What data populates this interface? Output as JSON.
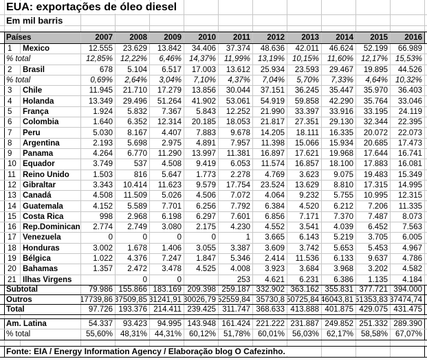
{
  "title": "EUA: exportações de óleo diesel",
  "subtitle": "Em mil barris",
  "fonte": "Fonte: EIA / Energy Information Agency / Elaboração blog O Cafezinho.",
  "colors": {
    "header_bg": "#c0c0c0",
    "gridline": "#c7c7c7",
    "border": "#000000",
    "text": "#000000",
    "background": "#ffffff"
  },
  "table": {
    "country_header": "Países",
    "years": [
      "2007",
      "2008",
      "2009",
      "2010",
      "2011",
      "2012",
      "2013",
      "2014",
      "2015",
      "2016"
    ],
    "main_rows": [
      {
        "type": "country",
        "num": "1",
        "name": "Mexico",
        "values": [
          "12.555",
          "23.629",
          "13.842",
          "34.406",
          "37.374",
          "48.636",
          "42.011",
          "46.624",
          "52.199",
          "66.989"
        ]
      },
      {
        "type": "pct",
        "label": "% total",
        "values": [
          "12,85%",
          "12,22%",
          "6,46%",
          "14,37%",
          "11,99%",
          "13,19%",
          "10,15%",
          "11,60%",
          "12,17%",
          "15,53%"
        ]
      },
      {
        "type": "country",
        "num": "2",
        "name": "Brasil",
        "values": [
          "678",
          "5.104",
          "6.517",
          "17.003",
          "13.612",
          "25.934",
          "23.593",
          "29.467",
          "19.895",
          "44.526"
        ]
      },
      {
        "type": "pct",
        "label": "% total",
        "values": [
          "0,69%",
          "2,64%",
          "3,04%",
          "7,10%",
          "4,37%",
          "7,04%",
          "5,70%",
          "7,33%",
          "4,64%",
          "10,32%"
        ]
      },
      {
        "type": "country",
        "num": "3",
        "name": "Chile",
        "values": [
          "11.945",
          "21.710",
          "17.279",
          "13.856",
          "30.044",
          "37.151",
          "36.245",
          "35.447",
          "35.970",
          "36.403"
        ]
      },
      {
        "type": "country",
        "num": "4",
        "name": "Holanda",
        "values": [
          "13.349",
          "29.496",
          "51.264",
          "41.902",
          "53.061",
          "54.919",
          "59.858",
          "42.290",
          "35.764",
          "33.046"
        ]
      },
      {
        "type": "country",
        "num": "5",
        "name": "França",
        "values": [
          "1.924",
          "5.832",
          "7.367",
          "5.843",
          "12.252",
          "21.990",
          "33.397",
          "33.916",
          "33.195",
          "24.119"
        ]
      },
      {
        "type": "country",
        "num": "6",
        "name": "Colombia",
        "values": [
          "1.640",
          "6.352",
          "12.314",
          "20.185",
          "18.053",
          "21.817",
          "27.351",
          "29.130",
          "32.344",
          "22.395"
        ]
      },
      {
        "type": "country",
        "num": "7",
        "name": "Peru",
        "values": [
          "5.030",
          "8.167",
          "4.407",
          "7.883",
          "9.678",
          "14.205",
          "18.111",
          "16.335",
          "20.072",
          "22.073"
        ]
      },
      {
        "type": "country",
        "num": "8",
        "name": "Argentina",
        "values": [
          "2.193",
          "5.698",
          "2.975",
          "4.891",
          "7.957",
          "11.398",
          "15.066",
          "15.934",
          "20.685",
          "17.473"
        ]
      },
      {
        "type": "country",
        "num": "9",
        "name": "Panama",
        "values": [
          "4.264",
          "6.770",
          "11.290",
          "13.997",
          "11.381",
          "16.897",
          "17.621",
          "19.968",
          "17.644",
          "16.741"
        ]
      },
      {
        "type": "country",
        "num": "10",
        "name": "Equador",
        "values": [
          "3.749",
          "537",
          "4.508",
          "9.419",
          "6.053",
          "11.574",
          "16.857",
          "18.100",
          "17.883",
          "16.081"
        ]
      },
      {
        "type": "country",
        "num": "11",
        "name": "Reino Unido",
        "values": [
          "1.503",
          "816",
          "5.647",
          "1.773",
          "2.278",
          "4.769",
          "3.623",
          "9.075",
          "19.483",
          "15.349"
        ]
      },
      {
        "type": "country",
        "num": "12",
        "name": "Gibraltar",
        "values": [
          "3.343",
          "10.414",
          "11.623",
          "9.579",
          "17.754",
          "23.524",
          "13.629",
          "8.810",
          "17.315",
          "14.995"
        ]
      },
      {
        "type": "country",
        "num": "13",
        "name": "Canadá",
        "values": [
          "4.508",
          "11.509",
          "5.026",
          "4.506",
          "7.072",
          "4.064",
          "9.232",
          "5.755",
          "10.995",
          "12.315"
        ]
      },
      {
        "type": "country",
        "num": "14",
        "name": "Guatemala",
        "values": [
          "4.152",
          "5.589",
          "7.701",
          "6.256",
          "7.792",
          "6.384",
          "4.520",
          "6.212",
          "7.206",
          "11.335"
        ]
      },
      {
        "type": "country",
        "num": "15",
        "name": "Costa Rica",
        "values": [
          "998",
          "2.968",
          "6.198",
          "6.297",
          "7.601",
          "6.856",
          "7.171",
          "7.370",
          "7.487",
          "8.073"
        ]
      },
      {
        "type": "country",
        "num": "16",
        "name": "Rep.Dominicana",
        "values": [
          "2.774",
          "2.749",
          "3.080",
          "2.175",
          "4.230",
          "4.552",
          "3.541",
          "4.039",
          "6.452",
          "7.563"
        ]
      },
      {
        "type": "country",
        "num": "17",
        "name": "Venezuela",
        "values": [
          "0",
          "0",
          "0",
          "0",
          "1",
          "3.665",
          "6.143",
          "5.219",
          "3.705",
          "6.005"
        ]
      },
      {
        "type": "country",
        "num": "18",
        "name": "Honduras",
        "values": [
          "3.002",
          "1.678",
          "1.406",
          "3.055",
          "3.387",
          "3.609",
          "3.742",
          "5.653",
          "5.453",
          "4.967"
        ]
      },
      {
        "type": "country",
        "num": "19",
        "name": "Bélgica",
        "values": [
          "1.022",
          "4.376",
          "7.247",
          "1.847",
          "5.346",
          "2.414",
          "11.536",
          "6.133",
          "9.637",
          "4.786"
        ]
      },
      {
        "type": "country",
        "num": "20",
        "name": "Bahamas",
        "values": [
          "1.357",
          "2.472",
          "3.478",
          "4.525",
          "4.008",
          "3.923",
          "3.684",
          "3.968",
          "3.202",
          "4.582"
        ]
      },
      {
        "type": "country",
        "num": "21",
        "name": "Ilhas Virgens",
        "values": [
          "",
          "0",
          "0",
          "",
          "253",
          "4.621",
          "6.231",
          "6.386",
          "1.135",
          "4.184"
        ]
      },
      {
        "type": "agg",
        "label": "Subtotal",
        "values": [
          "79.986",
          "155.866",
          "183.169",
          "209.398",
          "259.187",
          "332.902",
          "363.162",
          "355.831",
          "377.721",
          "394.000"
        ]
      },
      {
        "type": "agg",
        "label": "Outros",
        "values": [
          "17739,86",
          "37509,85",
          "31241,91",
          "30026,79",
          "52559,84",
          "35730,8",
          "50725,84",
          "46043,81",
          "51353,83",
          "37474,74"
        ]
      },
      {
        "type": "agg",
        "label": "Total",
        "values": [
          "97.726",
          "193.376",
          "214.411",
          "239.425",
          "311.747",
          "368.633",
          "413.888",
          "401.875",
          "429.075",
          "431.475"
        ]
      }
    ],
    "summary_rows": [
      {
        "type": "amlat",
        "label": "Am. Latina",
        "values": [
          "54.337",
          "93.423",
          "94.995",
          "143.948",
          "161.424",
          "221.222",
          "231.887",
          "249.852",
          "251.332",
          "289.390"
        ]
      },
      {
        "type": "pct2",
        "label": "% total",
        "values": [
          "55,60%",
          "48,31%",
          "44,31%",
          "60,12%",
          "51,78%",
          "60,01%",
          "56,03%",
          "62,17%",
          "58,58%",
          "67,07%"
        ]
      }
    ]
  }
}
